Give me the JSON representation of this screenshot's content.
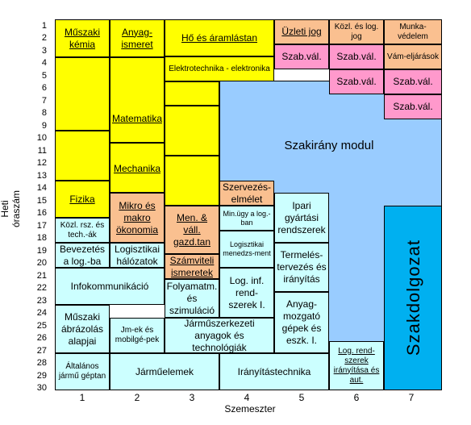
{
  "axis": {
    "y_label": "Heti óraszám",
    "x_label": "Szemeszter",
    "rows": [
      "1",
      "2",
      "3",
      "4",
      "5",
      "6",
      "7",
      "8",
      "9",
      "10",
      "11",
      "12",
      "13",
      "14",
      "15",
      "16",
      "17",
      "18",
      "19",
      "20",
      "21",
      "22",
      "23",
      "24",
      "25",
      "26",
      "27",
      "28",
      "29",
      "30"
    ],
    "cols": [
      "1",
      "2",
      "3",
      "4",
      "5",
      "6",
      "7"
    ]
  },
  "subjects": {
    "muszaki_kemia": "Műszaki kémia",
    "anyagismeret": "Anyag-ismeret",
    "ho_aramlastan": "Hő és áramlástan",
    "uzleti_jog": "Üzleti jog",
    "kozl_log_jog": "Közl. és log. jog",
    "munkavedelem": "Munka-védelem",
    "elektrotechnika": "Elektrotechnika - elektronika",
    "szabval": "Szab.vál.",
    "vameljarasok": "Vám-eljárások",
    "matematika": "Matematika",
    "szakirany": "Szakirány modul",
    "mechanika": "Mechanika",
    "fizika": "Fizika",
    "szervezeselmelet": "Szervezés-elmélet",
    "min_ugy_log_ban": "Min.ügy a log.-ban",
    "ipari_gyartasi": "Ipari gyártási rendszerek",
    "szakdolgozat": "Szakdolgozat",
    "mikro_makro": "Mikro és makro ökonomia",
    "men_vall_gazd": "Men. & váll. gazd.tan",
    "kozl_rsz_tech": "Közl. rsz. és tech.-ák",
    "logisztikai_menedzsment": "Logisztikai menedzs-ment",
    "bevezetes_log": "Bevezetés a log.-ba",
    "logisztikai_halozatok": "Logisztikai hálózatok",
    "szamviteli": "Számviteli ismeretek",
    "termelestervezes": "Termelés-tervezés és irányítás",
    "log_inf_rendszerek": "Log. inf. rend-szerek I.",
    "infokommunikacio": "Infokommunikáció",
    "folyamatmodellezes": "Folyamatm. és szimuláció",
    "anyagmozgato": "Anyag-mozgató gépek és eszk. I.",
    "muszaki_abrazolas": "Műszaki ábrázolás alapjai",
    "jarmuvek_mobilgepek": "Jm-ek és mobilgé-pek",
    "jarmuszerkezeti": "Járműszerkezeti anyagok és technológiák",
    "log_rendszerek_iranyitasa": "Log. rend-szerek irányítása és aut.",
    "altalanos_jarmugeptan": "Általános jármű géptan",
    "jarmuelemek": "Járműelemek",
    "iranyitastechnika": "Irányítástechnika"
  }
}
